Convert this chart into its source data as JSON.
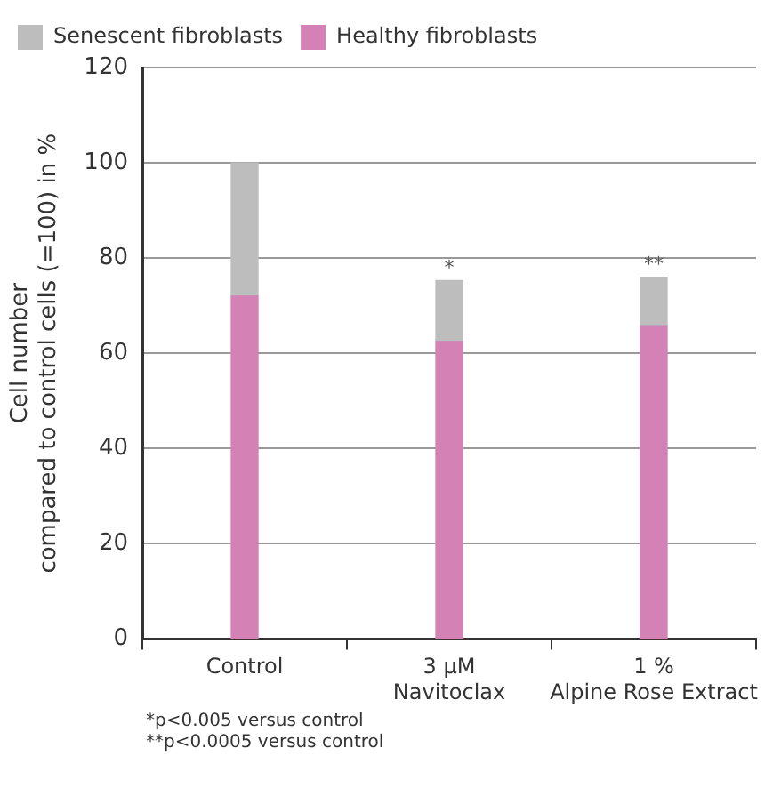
{
  "chart_data": {
    "type": "bar",
    "stacked": true,
    "categories": [
      "Control",
      "3 µM\nNavitoclax",
      "1 %\nAlpine Rose Extract"
    ],
    "series": [
      {
        "name": "Healthy fibroblasts",
        "color": "#d481b5",
        "values": [
          72,
          62.5,
          65.8
        ]
      },
      {
        "name": "Senescent fibroblasts",
        "color": "#bdbdbd",
        "values": [
          28,
          12.8,
          10.2
        ]
      }
    ],
    "ylabel": "Cell number\ncompared to control cells (=100) in %",
    "ylim": [
      0,
      120
    ],
    "yticks": [
      0,
      20,
      40,
      60,
      80,
      100,
      120
    ],
    "grid": "y",
    "legend": "top left",
    "annotations": [
      {
        "text": "*",
        "x": "3 µM\nNavitoclax",
        "y": 75.3
      },
      {
        "text": "**",
        "x": "1 %\nAlpine Rose Extract",
        "y": 76
      },
      "*p<0.005 versus control\n**p<0.0005 versus control"
    ]
  }
}
